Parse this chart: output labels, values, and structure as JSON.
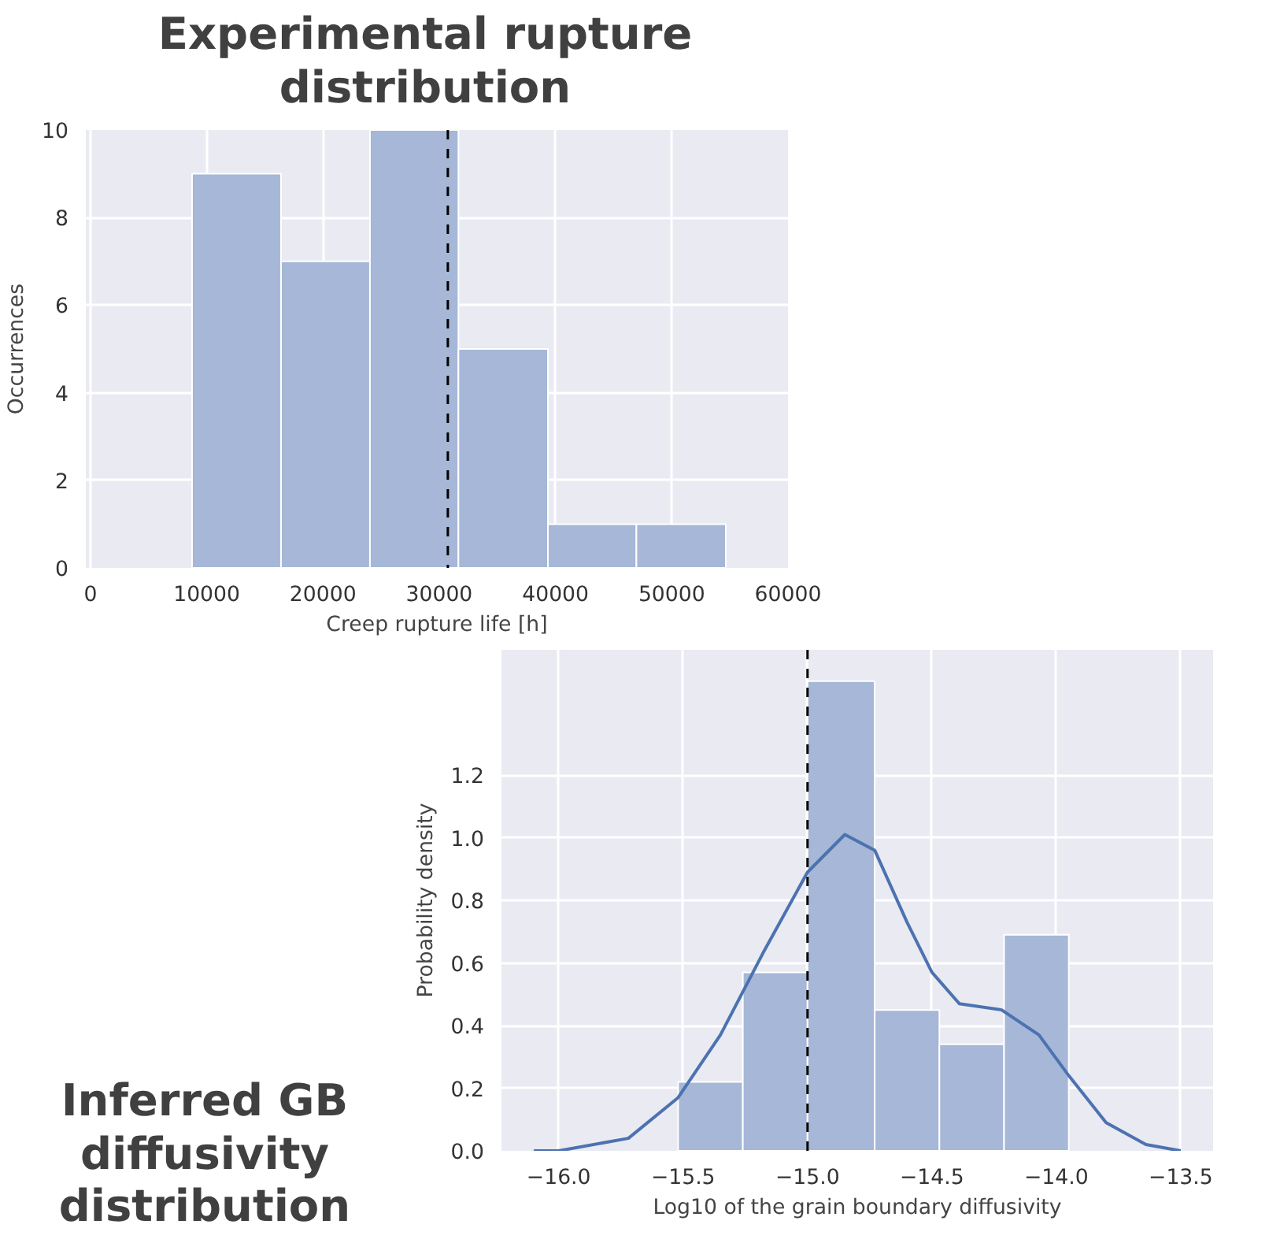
{
  "chart_data": [
    {
      "type": "histogram",
      "title": "Experimental rupture distribution",
      "xlabel": "Creep rupture life [h]",
      "ylabel": "Occurrences",
      "bins": [
        8740,
        16390,
        24040,
        31650,
        39350,
        46960,
        54650
      ],
      "values": [
        9,
        7,
        10,
        5,
        1,
        1
      ],
      "color": "#a6b7d7",
      "xlim": [
        -400,
        60000
      ],
      "xticks": [
        0,
        10000,
        20000,
        30000,
        40000,
        50000,
        60000
      ],
      "ylim": [
        0,
        10
      ],
      "yticks": [
        0,
        2,
        4,
        6,
        8,
        10
      ],
      "grid": true,
      "ref_lines": [
        {
          "axis": "x",
          "value": 30740,
          "color": "#000000",
          "line_style": "dashed"
        }
      ]
    },
    {
      "type": "histogram",
      "title": "Inferred GB diffusivity distribution",
      "xlabel": "Log10 of the grain boundary diffusivity",
      "ylabel": "Probability density",
      "series": [
        {
          "bins": [
            -15.52,
            -15.26,
            -15.0,
            -14.73,
            -14.47,
            -14.21,
            -13.95
          ],
          "values": [
            0.22,
            0.57,
            1.5,
            0.45,
            0.34,
            0.69
          ],
          "color": "#a6b7d7"
        },
        {
          "type": "line",
          "x": [
            -16.1,
            -16.0,
            -15.72,
            -15.52,
            -15.35,
            -15.18,
            -15.0,
            -14.85,
            -14.73,
            -14.6,
            -14.5,
            -14.39,
            -14.22,
            -14.07,
            -13.95,
            -13.8,
            -13.64,
            -13.5
          ],
          "values": [
            0,
            0.0,
            0.04,
            0.17,
            0.37,
            0.63,
            0.89,
            1.01,
            0.96,
            0.73,
            0.57,
            0.47,
            0.45,
            0.37,
            0.24,
            0.09,
            0.02,
            0
          ],
          "color": "#4c72b0"
        }
      ],
      "xlim": [
        -16.23,
        -13.37
      ],
      "xticks": [
        {
          "value": -16.0,
          "label": "−16.0"
        },
        {
          "value": -15.5,
          "label": "−15.5"
        },
        {
          "value": -15.0,
          "label": "−15.0"
        },
        {
          "value": -14.5,
          "label": "−14.5"
        },
        {
          "value": -14.0,
          "label": "−14.0"
        },
        {
          "value": -13.5,
          "label": "−13.5"
        }
      ],
      "ylim": [
        0,
        1.6
      ],
      "yticks": [
        {
          "value": 0,
          "label": "0.0"
        },
        {
          "value": 0.2,
          "label": "0.2"
        },
        {
          "value": 0.4,
          "label": "0.4"
        },
        {
          "value": 0.6,
          "label": "0.6"
        },
        {
          "value": 0.8,
          "label": "0.8"
        },
        {
          "value": 1.0,
          "label": "1.0"
        },
        {
          "value": 1.2,
          "label": "1.2"
        }
      ],
      "grid": true,
      "ref_lines": [
        {
          "axis": "x",
          "value": -15.0,
          "color": "#000000",
          "line_style": "dashed"
        }
      ]
    }
  ]
}
